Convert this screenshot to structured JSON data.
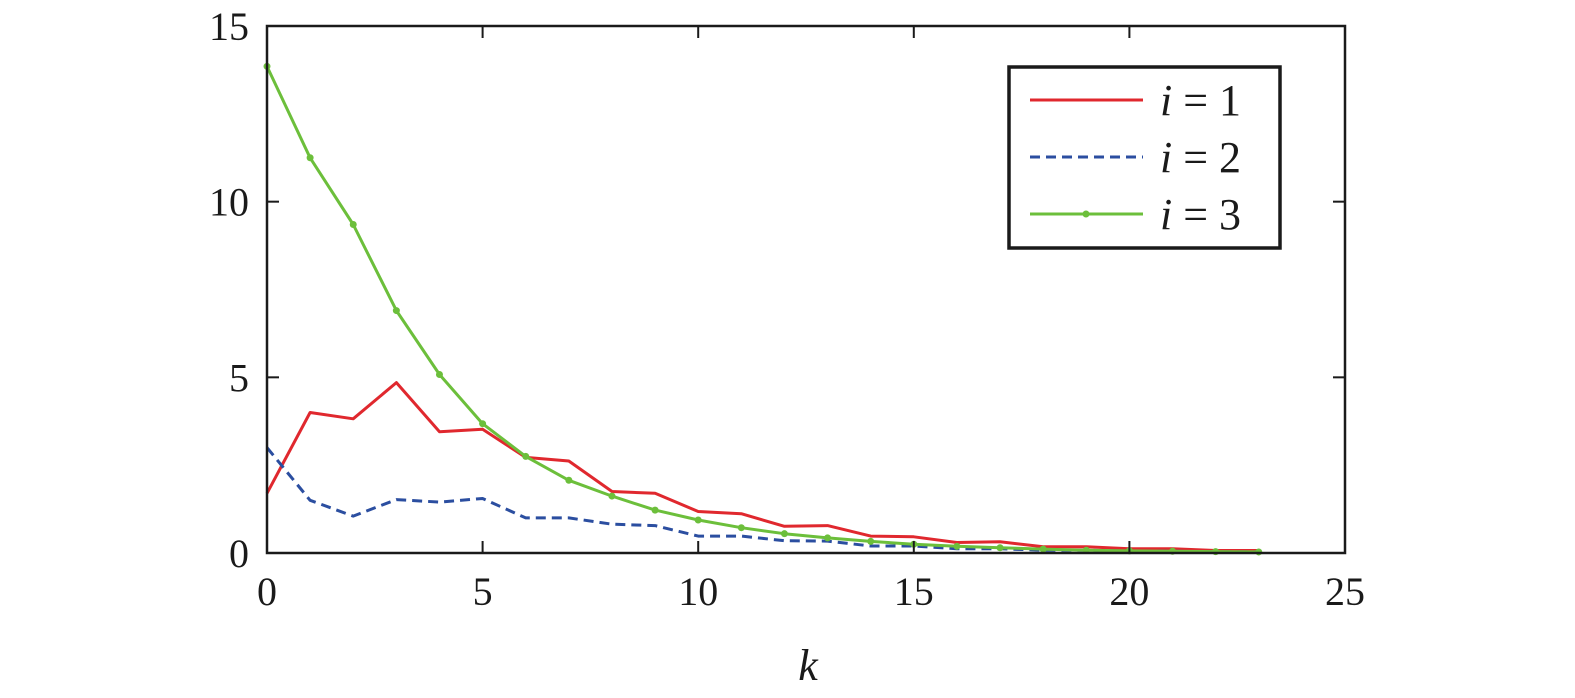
{
  "chart_data": {
    "type": "line",
    "title": "",
    "xlabel": "k",
    "ylabel": "",
    "xlim": [
      0,
      25
    ],
    "ylim": [
      0,
      15
    ],
    "xticks": [
      0,
      5,
      10,
      15,
      20,
      25
    ],
    "yticks": [
      0,
      5,
      10,
      15
    ],
    "grid": false,
    "legend_position": "top-right",
    "series": [
      {
        "name": "i = 1",
        "legend_var": "i",
        "legend_rest": " = 1",
        "color": "#e0282e",
        "style": "solid",
        "markers": false,
        "x": [
          0,
          1,
          2,
          3,
          4,
          5,
          6,
          7,
          8,
          9,
          10,
          11,
          12,
          13,
          14,
          15,
          16,
          17,
          18,
          19,
          20,
          21,
          22,
          23
        ],
        "values": [
          1.7,
          4.0,
          3.82,
          4.85,
          3.45,
          3.52,
          2.72,
          2.62,
          1.75,
          1.7,
          1.18,
          1.12,
          0.76,
          0.78,
          0.48,
          0.46,
          0.3,
          0.32,
          0.18,
          0.18,
          0.12,
          0.12,
          0.07,
          0.07
        ]
      },
      {
        "name": "i = 2",
        "legend_var": "i",
        "legend_rest": " = 2",
        "color": "#2b4ea0",
        "style": "dashed",
        "markers": false,
        "x": [
          0,
          1,
          2,
          3,
          4,
          5,
          6,
          7,
          8,
          9,
          10,
          11,
          12,
          13,
          14,
          15,
          16,
          17,
          18,
          19,
          20,
          21,
          22,
          23
        ],
        "values": [
          3.0,
          1.5,
          1.05,
          1.52,
          1.45,
          1.55,
          1.0,
          1.0,
          0.82,
          0.78,
          0.48,
          0.48,
          0.35,
          0.34,
          0.2,
          0.2,
          0.12,
          0.12,
          0.08,
          0.08,
          0.05,
          0.05,
          0.03,
          0.03
        ]
      },
      {
        "name": "i = 3",
        "legend_var": "i",
        "legend_rest": " = 3",
        "color": "#6cbf3b",
        "style": "solid",
        "markers": true,
        "x": [
          0,
          1,
          2,
          3,
          4,
          5,
          6,
          7,
          8,
          9,
          10,
          11,
          12,
          13,
          14,
          15,
          16,
          17,
          18,
          19,
          20,
          21,
          22,
          23
        ],
        "values": [
          13.85,
          11.25,
          9.35,
          6.9,
          5.08,
          3.68,
          2.75,
          2.07,
          1.62,
          1.22,
          0.94,
          0.72,
          0.55,
          0.43,
          0.33,
          0.25,
          0.19,
          0.15,
          0.11,
          0.08,
          0.06,
          0.05,
          0.04,
          0.03
        ]
      }
    ]
  }
}
